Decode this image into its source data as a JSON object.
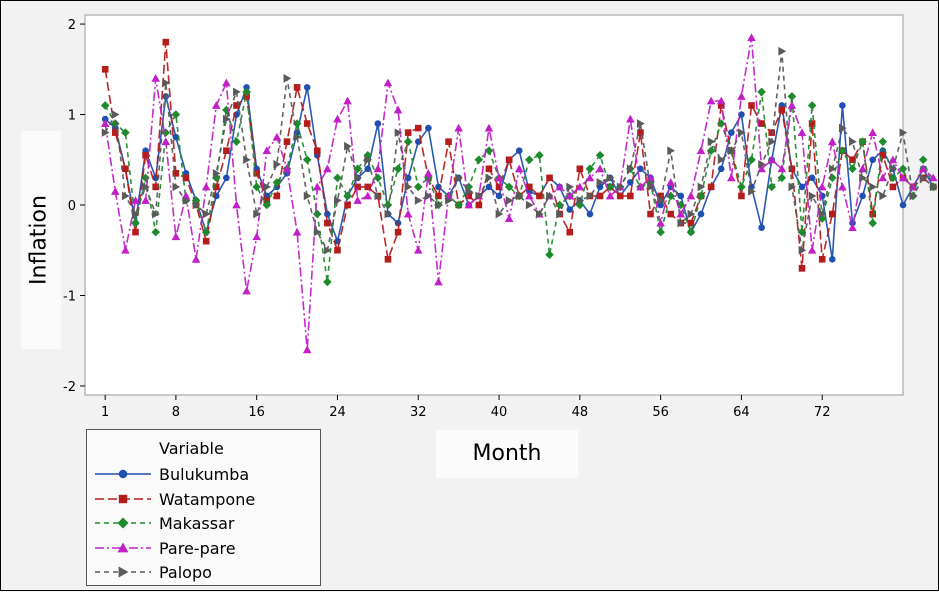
{
  "chart_data": {
    "type": "line",
    "title": "",
    "xlabel": "Month",
    "ylabel": "Inflation",
    "xlim": [
      -1,
      80
    ],
    "ylim": [
      -2.1,
      2.1
    ],
    "x_ticks": [
      1,
      8,
      16,
      24,
      32,
      40,
      48,
      56,
      64,
      72
    ],
    "y_ticks": [
      -2,
      -1,
      0,
      1,
      2
    ],
    "legend_title": "Variable",
    "legend_position": "bottom-left-outside",
    "series": [
      {
        "name": "Bulukumba",
        "color": "#1f4fb0",
        "marker": "circle",
        "dash": "solid",
        "values": [
          0.95,
          0.85,
          0.4,
          -0.2,
          0.6,
          0.3,
          1.2,
          0.75,
          0.35,
          0.05,
          -0.3,
          0.1,
          0.3,
          1.0,
          1.3,
          0.4,
          0.1,
          0.2,
          0.35,
          0.8,
          1.3,
          0.55,
          -0.1,
          -0.4,
          0.1,
          0.3,
          0.4,
          0.9,
          -0.1,
          -0.2,
          0.3,
          0.7,
          0.85,
          0.2,
          0.1,
          0.3,
          0.0,
          0.1,
          0.2,
          0.1,
          0.5,
          0.6,
          0.15,
          0.1,
          0.3,
          0.2,
          -0.05,
          0.05,
          -0.1,
          0.2,
          0.3,
          0.1,
          0.25,
          0.4,
          0.3,
          0.0,
          0.2,
          0.1,
          -0.3,
          -0.1,
          0.2,
          0.4,
          0.8,
          1.0,
          0.2,
          -0.25,
          0.5,
          1.1,
          0.4,
          0.2,
          0.3,
          0.1,
          -0.6,
          1.1,
          -0.2,
          0.1,
          0.5,
          0.6,
          0.4,
          0.0,
          0.2,
          0.4,
          0.2
        ]
      },
      {
        "name": "Watampone",
        "color": "#b51c1c",
        "marker": "square",
        "dash": "longdash",
        "values": [
          1.5,
          0.8,
          0.4,
          -0.3,
          0.55,
          0.2,
          1.8,
          0.35,
          0.3,
          0.0,
          -0.4,
          0.2,
          0.6,
          1.1,
          1.2,
          0.35,
          0.05,
          0.1,
          0.7,
          1.3,
          0.9,
          0.6,
          -0.2,
          -0.5,
          0.0,
          0.2,
          0.2,
          0.1,
          -0.6,
          -0.3,
          0.8,
          0.85,
          0.3,
          0.1,
          0.7,
          0.0,
          0.1,
          0.0,
          0.4,
          0.2,
          0.5,
          0.1,
          0.2,
          0.1,
          0.3,
          -0.1,
          -0.3,
          0.4,
          0.1,
          0.1,
          0.2,
          0.1,
          0.1,
          0.8,
          -0.1,
          0.1,
          -0.1,
          -0.2,
          -0.2,
          0.1,
          0.2,
          1.1,
          0.6,
          0.1,
          1.1,
          0.9,
          0.8,
          1.05,
          0.4,
          -0.7,
          0.9,
          -0.6,
          -0.1,
          0.6,
          0.5,
          0.7,
          -0.1,
          0.55,
          0.2,
          0.3,
          0.2,
          0.3,
          0.2
        ]
      },
      {
        "name": "Makassar",
        "color": "#1e8a2e",
        "marker": "diamond",
        "dash": "dash",
        "values": [
          1.1,
          0.9,
          0.8,
          -0.2,
          0.3,
          -0.3,
          0.8,
          1.0,
          0.05,
          0.05,
          -0.3,
          0.3,
          1.05,
          0.7,
          1.25,
          0.2,
          0.0,
          0.25,
          0.4,
          0.9,
          0.5,
          -0.1,
          -0.85,
          0.3,
          0.1,
          0.4,
          0.55,
          0.3,
          0.0,
          0.4,
          0.7,
          0.2,
          0.3,
          0.0,
          0.1,
          0.0,
          0.2,
          0.5,
          0.6,
          0.3,
          0.2,
          0.1,
          0.5,
          0.55,
          -0.55,
          0.0,
          0.1,
          0.0,
          0.4,
          0.55,
          0.2,
          0.2,
          0.4,
          0.2,
          0.25,
          -0.3,
          0.1,
          0.0,
          -0.3,
          0.1,
          0.6,
          0.9,
          0.6,
          0.2,
          0.5,
          1.25,
          0.2,
          0.3,
          1.2,
          -0.3,
          1.1,
          -0.15,
          0.3,
          0.6,
          0.4,
          0.7,
          -0.2,
          0.7,
          0.3,
          0.4,
          0.1,
          0.5,
          0.2
        ]
      },
      {
        "name": "Pare-pare",
        "color": "#c21fc8",
        "marker": "triangle",
        "dash": "longdash-dot",
        "values": [
          0.9,
          0.15,
          -0.5,
          0.05,
          0.05,
          1.4,
          0.7,
          -0.35,
          0.1,
          -0.6,
          0.2,
          1.1,
          1.35,
          0.0,
          -0.95,
          -0.35,
          0.6,
          0.75,
          0.4,
          -0.3,
          -1.6,
          0.2,
          0.4,
          0.95,
          1.15,
          0.05,
          0.1,
          0.4,
          1.35,
          1.05,
          -0.1,
          -0.5,
          0.35,
          -0.85,
          0.1,
          0.85,
          0.0,
          0.1,
          0.85,
          0.3,
          -0.15,
          0.4,
          0.1,
          -0.1,
          0.1,
          0.2,
          0.1,
          0.2,
          0.3,
          0.4,
          0.1,
          0.2,
          0.95,
          0.2,
          0.3,
          -0.2,
          0.25,
          -0.1,
          0.1,
          0.6,
          1.15,
          1.15,
          0.3,
          1.2,
          1.85,
          0.4,
          0.5,
          0.4,
          1.1,
          0.8,
          -0.5,
          0.2,
          0.7,
          0.2,
          -0.25,
          0.4,
          0.8,
          0.3,
          0.5,
          0.3,
          0.2,
          0.4,
          0.3
        ]
      },
      {
        "name": "Palopo",
        "color": "#5a5a5a",
        "marker": "triangle-right",
        "dash": "dash",
        "values": [
          0.8,
          1.0,
          0.1,
          -0.1,
          0.2,
          -0.1,
          1.35,
          0.2,
          0.05,
          0.0,
          -0.1,
          0.35,
          0.95,
          1.25,
          0.5,
          -0.1,
          0.2,
          0.45,
          1.4,
          0.75,
          0.1,
          -0.3,
          -0.5,
          0.05,
          0.65,
          0.3,
          0.5,
          0.1,
          -0.1,
          0.8,
          0.2,
          0.05,
          0.1,
          0.0,
          0.05,
          0.3,
          0.15,
          0.1,
          0.3,
          -0.1,
          0.05,
          0.1,
          0.0,
          -0.1,
          0.1,
          -0.1,
          0.2,
          0.05,
          0.1,
          0.25,
          0.3,
          0.2,
          0.4,
          0.9,
          0.2,
          0.05,
          0.6,
          -0.2,
          -0.1,
          0.2,
          0.7,
          0.5,
          0.6,
          0.8,
          0.15,
          0.45,
          0.7,
          1.7,
          0.2,
          -0.5,
          0.1,
          -0.1,
          0.4,
          0.85,
          0.7,
          0.3,
          0.2,
          0.1,
          0.4,
          0.8,
          0.1,
          0.3,
          0.2
        ]
      }
    ]
  }
}
